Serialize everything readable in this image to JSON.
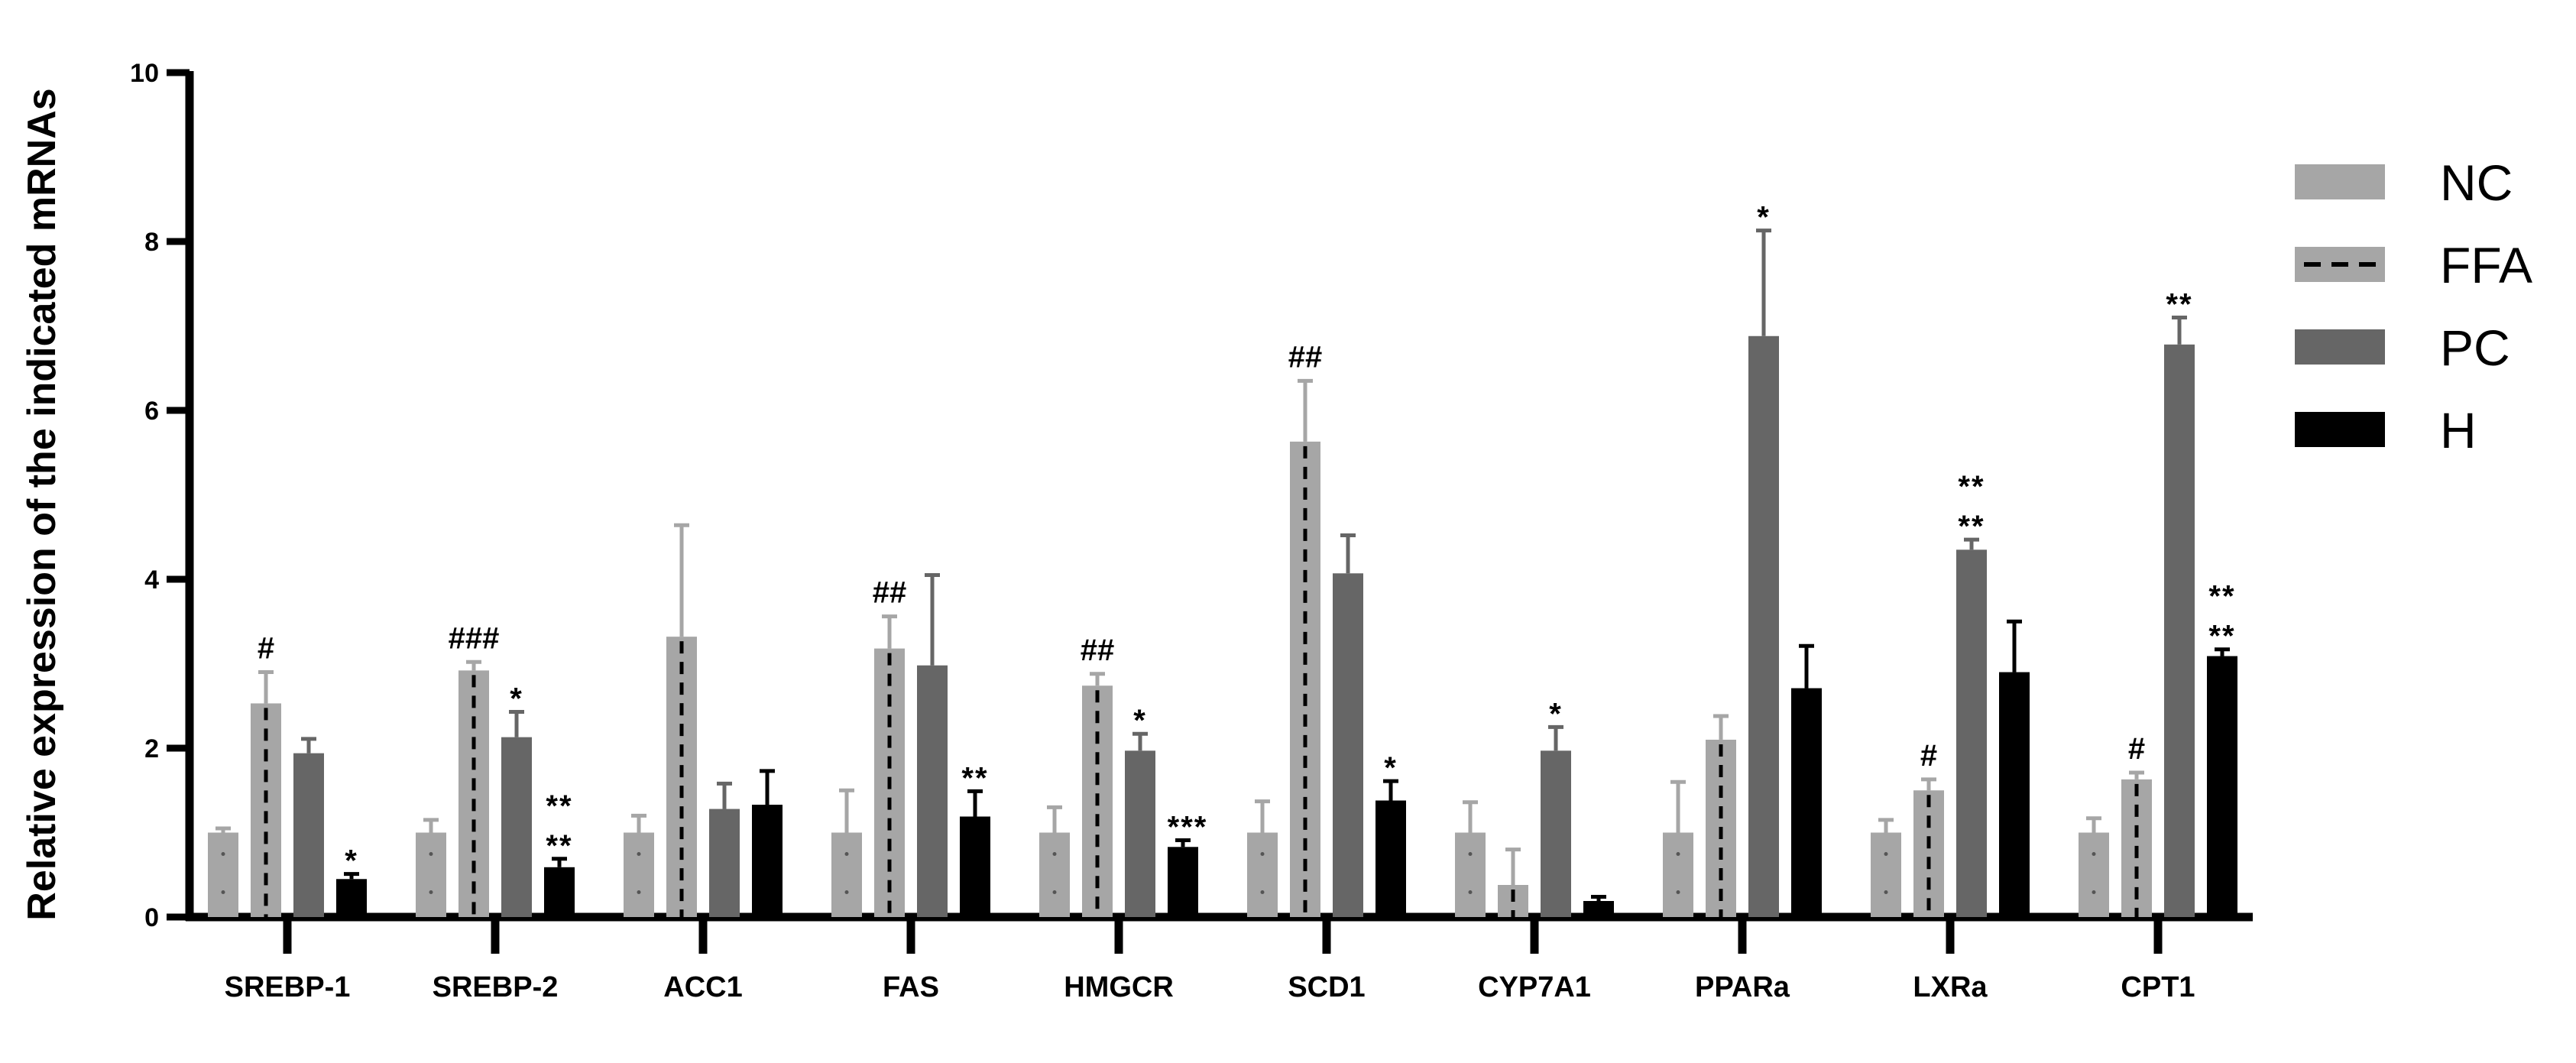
{
  "chart_data": {
    "type": "bar",
    "title": "",
    "xlabel": "",
    "ylabel": "Relative expression of the indicated mRNAs",
    "ylim": [
      0,
      10
    ],
    "yticks": [
      "0",
      "2",
      "4",
      "6",
      "8",
      "10"
    ],
    "categories": [
      "SREBP-1",
      "SREBP-2",
      "ACC1",
      "FAS",
      "HMGCR",
      "SCD1",
      "CYP7A1",
      "PPARa",
      "LXRa",
      "CPT1"
    ],
    "series": [
      {
        "name": "NC",
        "color": "#a6a6a6",
        "pattern": "dotted",
        "values": [
          1.0,
          1.0,
          1.0,
          1.0,
          1.0,
          1.0,
          1.0,
          1.0,
          1.0,
          1.0
        ],
        "errors": [
          0.05,
          0.15,
          0.2,
          0.5,
          0.3,
          0.37,
          0.36,
          0.6,
          0.15,
          0.17
        ]
      },
      {
        "name": "FFA",
        "color": "#a6a6a6",
        "pattern": "dashed",
        "values": [
          2.53,
          2.92,
          3.32,
          3.18,
          2.74,
          5.63,
          0.38,
          2.1,
          1.5,
          1.63
        ],
        "errors": [
          0.37,
          0.1,
          1.32,
          0.38,
          0.14,
          0.72,
          0.42,
          0.28,
          0.13,
          0.08
        ]
      },
      {
        "name": "PC",
        "color": "#666666",
        "pattern": "solid",
        "values": [
          1.94,
          2.13,
          1.28,
          2.98,
          1.97,
          4.07,
          1.97,
          6.88,
          4.35,
          6.78
        ],
        "errors": [
          0.17,
          0.3,
          0.3,
          1.07,
          0.2,
          0.45,
          0.28,
          1.25,
          0.12,
          0.32
        ]
      },
      {
        "name": "H",
        "color": "#000000",
        "pattern": "solid",
        "values": [
          0.45,
          0.59,
          1.33,
          1.19,
          0.83,
          1.38,
          0.19,
          2.71,
          2.9,
          3.09
        ],
        "errors": [
          0.06,
          0.1,
          0.4,
          0.3,
          0.08,
          0.23,
          0.05,
          0.5,
          0.6,
          0.08
        ]
      }
    ],
    "annotations": [
      {
        "category": "SREBP-1",
        "series": "FFA",
        "lines": [
          "#"
        ]
      },
      {
        "category": "SREBP-1",
        "series": "H",
        "lines": [
          "*"
        ]
      },
      {
        "category": "SREBP-2",
        "series": "FFA",
        "lines": [
          "###"
        ]
      },
      {
        "category": "SREBP-2",
        "series": "PC",
        "lines": [
          "*"
        ]
      },
      {
        "category": "SREBP-2",
        "series": "H",
        "lines": [
          "**",
          "**"
        ]
      },
      {
        "category": "FAS",
        "series": "FFA",
        "lines": [
          "##"
        ]
      },
      {
        "category": "FAS",
        "series": "H",
        "lines": [
          "**"
        ]
      },
      {
        "category": "HMGCR",
        "series": "FFA",
        "lines": [
          "##"
        ]
      },
      {
        "category": "HMGCR",
        "series": "PC",
        "lines": [
          "*"
        ]
      },
      {
        "category": "HMGCR",
        "series": "H",
        "lines": [
          "***"
        ]
      },
      {
        "category": "SCD1",
        "series": "FFA",
        "lines": [
          "##"
        ]
      },
      {
        "category": "SCD1",
        "series": "H",
        "lines": [
          "*"
        ]
      },
      {
        "category": "CYP7A1",
        "series": "PC",
        "lines": [
          "*"
        ]
      },
      {
        "category": "PPARa",
        "series": "PC",
        "lines": [
          "*"
        ]
      },
      {
        "category": "LXRa",
        "series": "FFA",
        "lines": [
          "#"
        ]
      },
      {
        "category": "LXRa",
        "series": "PC",
        "lines": [
          "**",
          "**"
        ]
      },
      {
        "category": "CPT1",
        "series": "FFA",
        "lines": [
          "#"
        ]
      },
      {
        "category": "CPT1",
        "series": "PC",
        "lines": [
          "**"
        ]
      },
      {
        "category": "CPT1",
        "series": "H",
        "lines": [
          "**",
          "**"
        ]
      }
    ],
    "legend": {
      "position": "right",
      "entries": [
        "NC",
        "FFA",
        "PC",
        "H"
      ]
    },
    "grid": false
  }
}
